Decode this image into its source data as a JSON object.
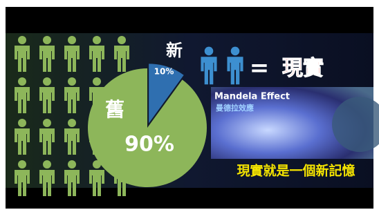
{
  "chart_data": {
    "type": "pie",
    "categories": [
      "新",
      "舊"
    ],
    "values": [
      10,
      90
    ],
    "value_labels": [
      "10%",
      "90%"
    ],
    "colors": [
      "#2f6fb0",
      "#8db65a"
    ],
    "annotations": {
      "equals": "=",
      "reality": "現實",
      "image_title": "Mandela Effect",
      "image_subtitle": "曼德拉效應",
      "caption": "現實就是一個新記憶"
    }
  }
}
